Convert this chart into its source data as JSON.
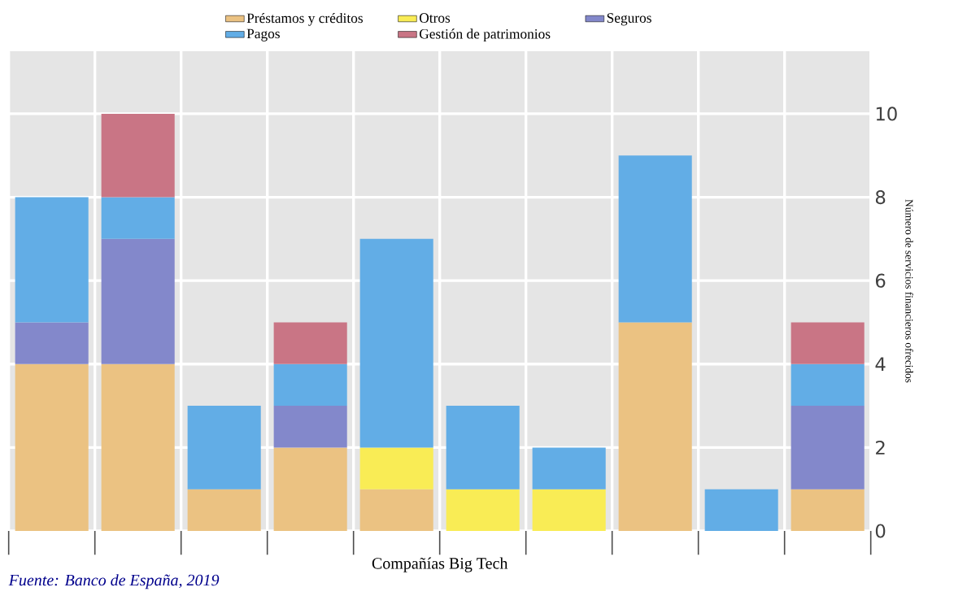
{
  "chart_data": {
    "type": "bar",
    "stacked": true,
    "xlabel": "Compañías Big Tech",
    "ylabel": "Número de servicios financieros ofrecidos",
    "categories": [
      null,
      null,
      null,
      null,
      null,
      null,
      null,
      null,
      null,
      null
    ],
    "series": [
      {
        "name": "Préstamos y créditos",
        "color": "#ebc282",
        "values": [
          4,
          4,
          1,
          2,
          1,
          null,
          null,
          5,
          null,
          1
        ]
      },
      {
        "name": "Otros",
        "color": "#f9ec55",
        "values": [
          null,
          null,
          null,
          null,
          1,
          1,
          1,
          null,
          null,
          null
        ]
      },
      {
        "name": "Seguros",
        "color": "#8388cb",
        "values": [
          1,
          3,
          null,
          1,
          null,
          null,
          null,
          null,
          null,
          2
        ]
      },
      {
        "name": "Pagos",
        "color": "#62ade6",
        "values": [
          3,
          1,
          2,
          1,
          5,
          2,
          1,
          4,
          1,
          1
        ]
      },
      {
        "name": "Gestión de patrimonios",
        "color": "#c97585",
        "values": [
          null,
          2,
          null,
          1,
          null,
          null,
          null,
          null,
          null,
          1
        ]
      }
    ],
    "ylim": [
      0,
      11.5
    ],
    "yticks": [
      0,
      2,
      4,
      6,
      8,
      10
    ],
    "grid": true,
    "legend": "top",
    "annotations": [
      "Fuente: Banco de España, 2019"
    ]
  }
}
